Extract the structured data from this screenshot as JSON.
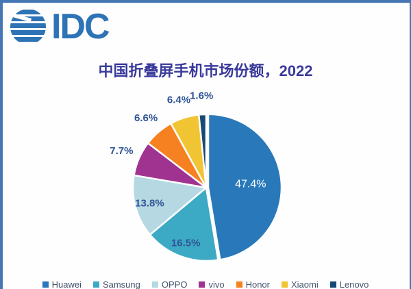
{
  "logo": {
    "text": "IDC",
    "color": "#2e73b5"
  },
  "frame": {
    "border_color": "#4677b4",
    "background": "#fefefe"
  },
  "chart_data": {
    "type": "pie",
    "title": "中国折叠屏手机市场份额，2022",
    "title_color": "#3a3a9c",
    "unit": "%",
    "direction": "clockwise",
    "start_angle_deg": 0,
    "categories": [
      "Huawei",
      "Samsung",
      "OPPO",
      "vivo",
      "Honor",
      "Xiaomi",
      "Lenovo"
    ],
    "values": [
      47.4,
      16.5,
      13.8,
      7.7,
      6.6,
      6.4,
      1.6
    ],
    "labels": [
      "47.4%",
      "16.5%",
      "13.8%",
      "7.7%",
      "6.6%",
      "6.4%",
      "1.6%"
    ],
    "colors": [
      "#2979ba",
      "#3caac5",
      "#b5d8e3",
      "#a03390",
      "#f58121",
      "#f1c433",
      "#164a72"
    ],
    "slice_border_color": "#ffffff",
    "label_color": "#2f5496",
    "inside_label_color": "#ffffff",
    "legend_position": "bottom",
    "legend_text_color": "#44546a"
  }
}
